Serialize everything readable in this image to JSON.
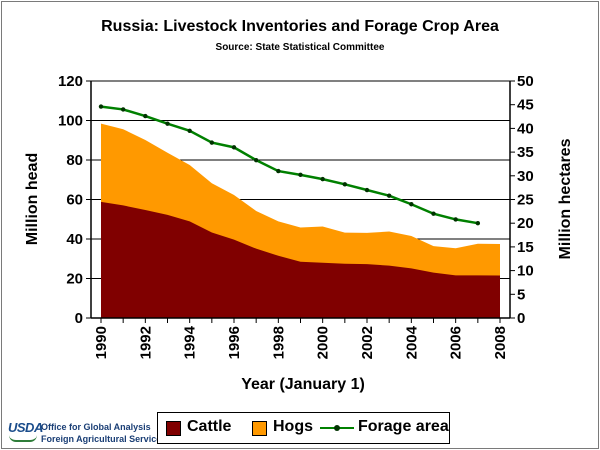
{
  "chart_data": {
    "type": "area",
    "title": "Russia:  Livestock Inventories and Forage Crop Area",
    "subtitle": "Source:  State Statistical Committee",
    "xlabel": "Year (January 1)",
    "ylabel": "Million head",
    "ylabel_right": "Million hectares",
    "xlim": [
      1990,
      2008
    ],
    "ylim": [
      0,
      120
    ],
    "ylim_right": [
      0,
      50
    ],
    "x_ticks": [
      "1990",
      "1992",
      "1994",
      "1996",
      "1998",
      "2000",
      "2002",
      "2004",
      "2006",
      "2008"
    ],
    "y_ticks": [
      "0",
      "20",
      "40",
      "60",
      "80",
      "100",
      "120"
    ],
    "y_ticks_right": [
      "0",
      "5",
      "10",
      "15",
      "20",
      "25",
      "30",
      "35",
      "40",
      "45",
      "50"
    ],
    "x": [
      1990,
      1991,
      1992,
      1993,
      1994,
      1995,
      1996,
      1997,
      1998,
      1999,
      2000,
      2001,
      2002,
      2003,
      2004,
      2005,
      2006,
      2007,
      2008
    ],
    "series": [
      {
        "name": "Cattle",
        "type": "area",
        "color": "#800000",
        "values": [
          58.8,
          57.0,
          54.7,
          52.2,
          48.9,
          43.3,
          39.7,
          35.1,
          31.5,
          28.5,
          28.0,
          27.5,
          27.3,
          26.5,
          25.1,
          23.0,
          21.6,
          21.6,
          21.5
        ]
      },
      {
        "name": "Hogs",
        "type": "area",
        "stacked_on": "Cattle",
        "color": "#ff9900",
        "values": [
          39.6,
          38.6,
          35.4,
          31.5,
          28.6,
          24.9,
          22.6,
          19.1,
          17.4,
          17.3,
          18.3,
          15.7,
          15.8,
          17.3,
          16.4,
          13.4,
          13.7,
          16.0,
          16.0
        ]
      },
      {
        "name": "Forage area",
        "type": "line",
        "axis": "right",
        "color": "#008000",
        "x": [
          1990,
          1991,
          1992,
          1993,
          1994,
          1995,
          1996,
          1997,
          1998,
          1999,
          2000,
          2001,
          2002,
          2003,
          2004,
          2005,
          2006,
          2007
        ],
        "values": [
          44.6,
          44.0,
          42.6,
          41.0,
          39.5,
          37.0,
          36.0,
          33.3,
          31.0,
          30.2,
          29.3,
          28.2,
          27.0,
          25.8,
          24.0,
          22.0,
          20.8,
          20.0
        ]
      }
    ],
    "legend": [
      "Cattle",
      "Hogs",
      "Forage area"
    ]
  },
  "branding": {
    "logo_text": "USDA",
    "line1": "Office for Global Analysis",
    "line2": "Foreign Agricultural Service"
  }
}
